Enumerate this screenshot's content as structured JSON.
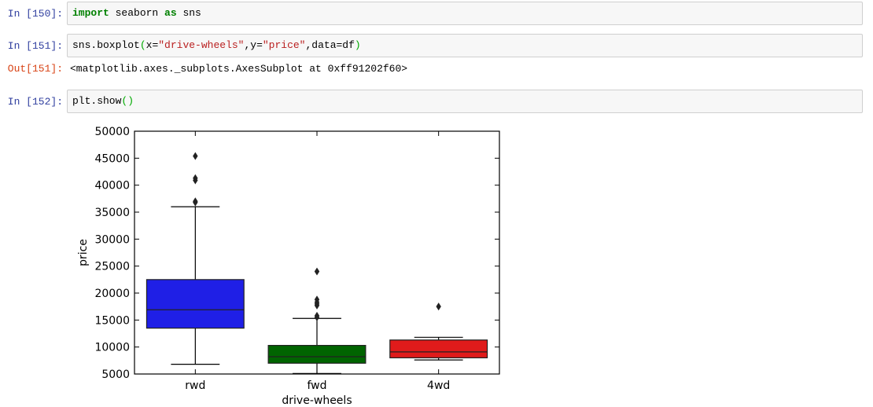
{
  "cells": [
    {
      "prompt": "In [150]:",
      "code": {
        "kw1": "import",
        "mid": " seaborn ",
        "kw2": "as",
        "tail": " sns"
      }
    },
    {
      "prompt": "In [151]:",
      "code": {
        "pre": "sns.boxplot",
        "open": "(",
        "a1": "x=",
        "s1": "\"drive-wheels\"",
        "a2": ",y=",
        "s2": "\"price\"",
        "a3": ",data=df",
        "close": ")"
      },
      "out_prompt": "Out[151]:",
      "output": "<matplotlib.axes._subplots.AxesSubplot at 0xff91202f60>"
    },
    {
      "prompt": "In [152]:",
      "code": {
        "pre": "plt.show",
        "open": "(",
        "close": ")"
      }
    }
  ],
  "chart_data": {
    "type": "box",
    "xlabel": "drive-wheels",
    "ylabel": "price",
    "ylim": [
      5000,
      50000
    ],
    "yticks": [
      5000,
      10000,
      15000,
      20000,
      25000,
      30000,
      35000,
      40000,
      45000,
      50000
    ],
    "grid": false,
    "categories": [
      "rwd",
      "fwd",
      "4wd"
    ],
    "boxes": [
      {
        "category": "rwd",
        "color": "#1f1fe6",
        "whislo": 6800,
        "q1": 13500,
        "median": 16900,
        "q3": 22500,
        "whishi": 36000,
        "fliers": [
          37000,
          36800,
          40900,
          41300,
          45400
        ]
      },
      {
        "category": "fwd",
        "color": "#006400",
        "whislo": 5100,
        "q1": 7000,
        "median": 8200,
        "q3": 10300,
        "whishi": 15300,
        "fliers": [
          15500,
          15800,
          17700,
          18000,
          18300,
          18800,
          24000
        ]
      },
      {
        "category": "4wd",
        "color": "#e01b1b",
        "whislo": 7600,
        "q1": 8000,
        "median": 9100,
        "q3": 11300,
        "whishi": 11800,
        "fliers": [
          17500
        ]
      }
    ]
  }
}
